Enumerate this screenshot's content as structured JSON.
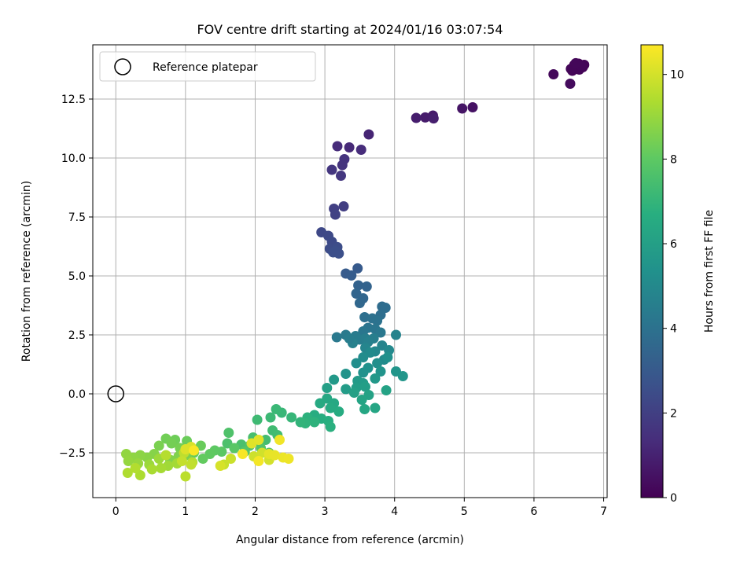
{
  "chart_data": {
    "type": "scatter",
    "title": "FOV centre drift starting at 2024/01/16 03:07:54",
    "xlabel": "Angular distance from reference (arcmin)",
    "ylabel": "Rotation from reference (arcmin)",
    "xlim": [
      -0.33,
      7.05
    ],
    "ylim": [
      -4.4,
      14.8
    ],
    "xticks": [
      0,
      1,
      2,
      3,
      4,
      5,
      6,
      7
    ],
    "xtick_labels": [
      "0",
      "1",
      "2",
      "3",
      "4",
      "5",
      "6",
      "7"
    ],
    "yticks": [
      -2.5,
      0.0,
      2.5,
      5.0,
      7.5,
      10.0,
      12.5
    ],
    "ytick_labels": [
      "−2.5",
      "0.0",
      "2.5",
      "5.0",
      "7.5",
      "10.0",
      "12.5"
    ],
    "grid": true,
    "legend": {
      "position": "upper left",
      "entries": [
        "Reference platepar"
      ]
    },
    "reference": {
      "x": 0,
      "y": 0
    },
    "colorbar": {
      "label": "Hours from first FF file",
      "min": 0,
      "max": 10.7,
      "ticks": [
        0,
        2,
        4,
        6,
        8,
        10
      ],
      "tick_labels": [
        "0",
        "2",
        "4",
        "6",
        "8",
        "10"
      ],
      "colormap": "viridis"
    },
    "series": [
      {
        "color_by": "hours",
        "points": [
          [
            6.58,
            13.95,
            0.0
          ],
          [
            6.64,
            14.0,
            0.02
          ],
          [
            6.6,
            13.8,
            0.04
          ],
          [
            6.7,
            13.85,
            0.06
          ],
          [
            6.55,
            13.7,
            0.08
          ],
          [
            6.72,
            13.95,
            0.1
          ],
          [
            6.65,
            13.75,
            0.12
          ],
          [
            6.53,
            13.78,
            0.14
          ],
          [
            6.68,
            13.9,
            0.16
          ],
          [
            6.6,
            14.02,
            0.18
          ],
          [
            6.28,
            13.55,
            0.22
          ],
          [
            6.52,
            13.15,
            0.3
          ],
          [
            5.12,
            12.15,
            0.5
          ],
          [
            4.97,
            12.1,
            0.6
          ],
          [
            4.55,
            11.8,
            0.75
          ],
          [
            4.44,
            11.72,
            0.8
          ],
          [
            4.31,
            11.7,
            0.85
          ],
          [
            4.56,
            11.68,
            0.9
          ],
          [
            3.63,
            11.0,
            1.1
          ],
          [
            3.35,
            10.45,
            1.25
          ],
          [
            3.18,
            10.5,
            1.3
          ],
          [
            3.52,
            10.35,
            1.35
          ],
          [
            3.28,
            9.95,
            1.55
          ],
          [
            3.25,
            9.7,
            1.6
          ],
          [
            3.1,
            9.5,
            1.65
          ],
          [
            3.23,
            9.25,
            1.7
          ],
          [
            3.27,
            7.95,
            1.95
          ],
          [
            3.13,
            7.85,
            2.0
          ],
          [
            3.15,
            7.6,
            2.05
          ],
          [
            2.95,
            6.85,
            2.3
          ],
          [
            3.05,
            6.7,
            2.35
          ],
          [
            3.1,
            6.45,
            2.4
          ],
          [
            3.07,
            6.15,
            2.45
          ],
          [
            3.18,
            6.22,
            2.5
          ],
          [
            3.12,
            6.0,
            2.55
          ],
          [
            3.2,
            5.95,
            2.6
          ],
          [
            3.15,
            6.05,
            2.55
          ],
          [
            3.47,
            5.32,
            3.0
          ],
          [
            3.3,
            5.1,
            3.05
          ],
          [
            3.38,
            5.02,
            3.1
          ],
          [
            3.48,
            4.6,
            3.35
          ],
          [
            3.6,
            4.55,
            3.4
          ],
          [
            3.45,
            4.25,
            3.45
          ],
          [
            3.55,
            4.05,
            3.5
          ],
          [
            3.5,
            3.85,
            3.55
          ],
          [
            3.82,
            3.7,
            3.75
          ],
          [
            3.87,
            3.65,
            3.8
          ],
          [
            3.8,
            3.35,
            3.85
          ],
          [
            3.57,
            3.25,
            3.9
          ],
          [
            3.68,
            3.2,
            3.95
          ],
          [
            3.75,
            3.1,
            4.0
          ],
          [
            3.62,
            2.8,
            4.1
          ],
          [
            3.72,
            2.75,
            4.15
          ],
          [
            3.55,
            2.65,
            4.2
          ],
          [
            3.8,
            2.6,
            4.25
          ],
          [
            3.17,
            2.4,
            4.3
          ],
          [
            3.3,
            2.5,
            4.35
          ],
          [
            3.44,
            2.45,
            4.4
          ],
          [
            3.5,
            2.3,
            4.45
          ],
          [
            3.58,
            2.35,
            4.5
          ],
          [
            3.7,
            2.35,
            4.55
          ],
          [
            3.62,
            2.2,
            4.6
          ],
          [
            3.4,
            2.15,
            4.65
          ],
          [
            3.35,
            2.35,
            4.5
          ],
          [
            4.02,
            2.5,
            4.75
          ],
          [
            3.82,
            2.05,
            4.8
          ],
          [
            3.58,
            1.95,
            4.85
          ],
          [
            3.72,
            1.8,
            4.9
          ],
          [
            3.92,
            1.85,
            5.0
          ],
          [
            3.65,
            1.75,
            5.05
          ],
          [
            3.85,
            1.45,
            5.1
          ],
          [
            3.55,
            1.55,
            5.15
          ],
          [
            3.45,
            1.3,
            5.2
          ],
          [
            3.75,
            1.3,
            5.25
          ],
          [
            3.9,
            1.55,
            5.3
          ],
          [
            3.62,
            1.1,
            5.35
          ],
          [
            3.55,
            0.9,
            5.4
          ],
          [
            3.3,
            0.85,
            5.45
          ],
          [
            3.8,
            0.95,
            5.5
          ],
          [
            4.02,
            0.95,
            5.55
          ],
          [
            4.12,
            0.75,
            5.6
          ],
          [
            3.72,
            0.65,
            5.65
          ],
          [
            3.13,
            0.6,
            5.7
          ],
          [
            3.47,
            0.55,
            5.75
          ],
          [
            3.55,
            0.45,
            5.8
          ],
          [
            3.3,
            0.2,
            5.85
          ],
          [
            3.45,
            0.25,
            5.9
          ],
          [
            3.58,
            0.3,
            5.95
          ],
          [
            3.03,
            0.25,
            6.0
          ],
          [
            3.42,
            0.05,
            6.05
          ],
          [
            3.63,
            -0.05,
            6.1
          ],
          [
            3.88,
            0.15,
            6.15
          ],
          [
            3.53,
            -0.25,
            6.2
          ],
          [
            3.72,
            -0.6,
            6.25
          ],
          [
            3.57,
            -0.65,
            6.3
          ],
          [
            3.03,
            -0.2,
            6.35
          ],
          [
            3.13,
            -0.4,
            6.4
          ],
          [
            2.93,
            -0.4,
            6.45
          ],
          [
            3.08,
            -0.6,
            6.5
          ],
          [
            3.2,
            -0.75,
            6.55
          ],
          [
            2.85,
            -0.9,
            6.6
          ],
          [
            2.95,
            -1.05,
            6.65
          ],
          [
            3.05,
            -1.15,
            6.7
          ],
          [
            3.08,
            -1.4,
            6.75
          ],
          [
            2.75,
            -1.0,
            6.8
          ],
          [
            2.85,
            -1.2,
            6.85
          ],
          [
            2.72,
            -1.25,
            6.9
          ],
          [
            2.65,
            -1.2,
            6.95
          ],
          [
            2.52,
            -1.0,
            7.05
          ],
          [
            2.38,
            -0.8,
            7.1
          ],
          [
            2.3,
            -0.65,
            7.15
          ],
          [
            2.22,
            -1.0,
            7.2
          ],
          [
            2.03,
            -1.1,
            7.25
          ],
          [
            2.25,
            -1.55,
            7.3
          ],
          [
            2.32,
            -1.75,
            7.35
          ],
          [
            2.15,
            -1.95,
            7.4
          ],
          [
            2.05,
            -2.0,
            7.45
          ],
          [
            1.97,
            -1.85,
            7.5
          ],
          [
            1.8,
            -2.15,
            7.55
          ],
          [
            1.6,
            -2.1,
            7.6
          ],
          [
            1.62,
            -1.65,
            7.65
          ],
          [
            1.92,
            -2.2,
            7.7
          ],
          [
            2.08,
            -2.3,
            7.75
          ],
          [
            2.2,
            -2.5,
            7.8
          ],
          [
            1.85,
            -2.45,
            7.85
          ],
          [
            1.7,
            -2.3,
            7.9
          ],
          [
            1.52,
            -2.45,
            7.95
          ],
          [
            1.42,
            -2.4,
            8.0
          ],
          [
            1.35,
            -2.55,
            8.05
          ],
          [
            1.25,
            -2.75,
            8.1
          ],
          [
            1.12,
            -2.5,
            8.15
          ],
          [
            1.22,
            -2.2,
            8.2
          ],
          [
            1.02,
            -2.0,
            8.25
          ],
          [
            0.85,
            -1.95,
            8.3
          ],
          [
            0.72,
            -1.9,
            8.35
          ],
          [
            0.8,
            -2.1,
            8.4
          ],
          [
            0.92,
            -2.3,
            8.45
          ],
          [
            0.62,
            -2.2,
            8.5
          ],
          [
            1.02,
            -2.6,
            8.55
          ],
          [
            0.9,
            -2.65,
            8.6
          ],
          [
            0.78,
            -2.8,
            8.65
          ],
          [
            0.55,
            -2.55,
            8.7
          ],
          [
            0.45,
            -2.7,
            8.75
          ],
          [
            0.35,
            -2.6,
            8.8
          ],
          [
            0.25,
            -2.7,
            8.85
          ],
          [
            0.15,
            -2.55,
            8.9
          ],
          [
            0.18,
            -2.85,
            8.95
          ],
          [
            0.32,
            -2.95,
            9.0
          ],
          [
            0.48,
            -3.0,
            9.05
          ],
          [
            0.62,
            -2.75,
            9.1
          ],
          [
            0.75,
            -3.05,
            9.15
          ],
          [
            0.88,
            -2.95,
            9.2
          ],
          [
            0.65,
            -3.15,
            9.25
          ],
          [
            0.52,
            -3.2,
            9.3
          ],
          [
            0.35,
            -3.45,
            9.35
          ],
          [
            0.17,
            -3.35,
            9.4
          ],
          [
            0.28,
            -3.15,
            9.45
          ],
          [
            0.72,
            -2.6,
            9.5
          ],
          [
            1.1,
            -2.9,
            9.55
          ],
          [
            1.0,
            -3.5,
            9.6
          ],
          [
            0.98,
            -2.5,
            9.65
          ],
          [
            1.08,
            -3.0,
            9.7
          ],
          [
            0.95,
            -2.85,
            9.75
          ],
          [
            1.55,
            -3.0,
            9.8
          ],
          [
            1.65,
            -2.75,
            9.85
          ],
          [
            1.98,
            -2.65,
            9.9
          ],
          [
            2.1,
            -2.5,
            9.95
          ],
          [
            2.2,
            -2.8,
            10.0
          ],
          [
            1.5,
            -3.05,
            10.05
          ],
          [
            1.08,
            -2.25,
            10.1
          ],
          [
            1.0,
            -2.35,
            10.15
          ],
          [
            1.95,
            -2.1,
            10.2
          ],
          [
            2.05,
            -1.95,
            10.25
          ],
          [
            2.2,
            -2.55,
            10.3
          ],
          [
            2.28,
            -2.6,
            10.35
          ],
          [
            2.4,
            -2.7,
            10.4
          ],
          [
            2.48,
            -2.75,
            10.45
          ],
          [
            2.35,
            -1.95,
            10.5
          ],
          [
            2.05,
            -2.85,
            10.55
          ],
          [
            1.82,
            -2.55,
            10.6
          ],
          [
            1.12,
            -2.4,
            10.65
          ]
        ]
      }
    ]
  }
}
